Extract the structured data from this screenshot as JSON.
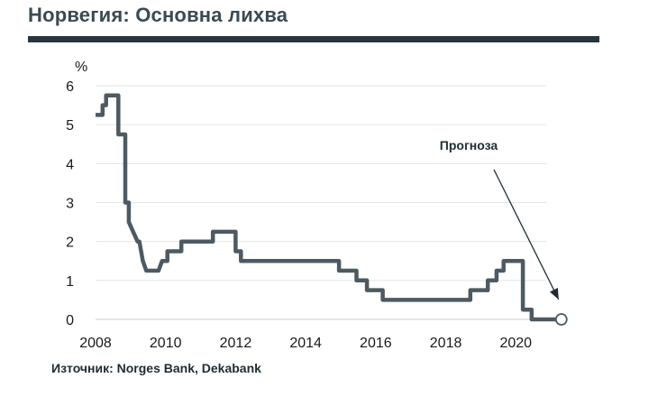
{
  "header": {
    "title": "Норвегия: Основна лихва"
  },
  "footer": {
    "source": "Източник: Norges Bank, Dekabank"
  },
  "chart_data": {
    "type": "line",
    "title": "Норвегия: Основна лихва",
    "ylabel": "%",
    "xlabel": "",
    "xlim": [
      2008,
      2022
    ],
    "ylim": [
      0,
      6
    ],
    "x_ticks": [
      2008,
      2010,
      2012,
      2014,
      2016,
      2018,
      2020
    ],
    "y_ticks": [
      0,
      1,
      2,
      3,
      4,
      5,
      6
    ],
    "grid": "horizontal",
    "line_color": "#4d5a61",
    "annotation": {
      "text": "Прогноза",
      "point": [
        2021.3,
        0
      ]
    },
    "series": [
      {
        "x": [
          2008.0,
          2008.2,
          2008.2,
          2008.3,
          2008.3,
          2008.45,
          2008.45,
          2008.65,
          2008.65,
          2008.75,
          2008.75,
          2008.85,
          2008.85,
          2008.95,
          2008.95,
          2009.2,
          2009.25,
          2009.35,
          2009.45,
          2009.45,
          2009.8,
          2009.9,
          2010.05,
          2010.05,
          2010.45,
          2010.45,
          2011.35,
          2011.35,
          2011.8,
          2011.8,
          2012.0,
          2012.0,
          2012.15,
          2012.15,
          2014.95,
          2014.95,
          2015.45,
          2015.45,
          2015.75,
          2015.75,
          2016.2,
          2016.2,
          2018.7,
          2018.7,
          2019.2,
          2019.2,
          2019.45,
          2019.45,
          2019.65,
          2019.65,
          2019.85,
          2019.85,
          2020.2,
          2020.2,
          2020.35,
          2020.35,
          2020.45,
          2020.45,
          2021.3
        ],
        "y": [
          5.25,
          5.25,
          5.5,
          5.5,
          5.75,
          5.75,
          5.75,
          5.75,
          4.75,
          4.75,
          4.75,
          4.75,
          3.0,
          3.0,
          2.5,
          2.0,
          2.0,
          1.5,
          1.25,
          1.25,
          1.25,
          1.5,
          1.5,
          1.75,
          1.75,
          2.0,
          2.0,
          2.25,
          2.25,
          2.25,
          2.25,
          1.75,
          1.75,
          1.5,
          1.5,
          1.25,
          1.25,
          1.0,
          1.0,
          0.75,
          0.75,
          0.5,
          0.5,
          0.75,
          0.75,
          1.0,
          1.0,
          1.25,
          1.25,
          1.5,
          1.5,
          1.5,
          1.5,
          0.25,
          0.25,
          0.25,
          0.25,
          0.0,
          0.0
        ]
      }
    ]
  }
}
